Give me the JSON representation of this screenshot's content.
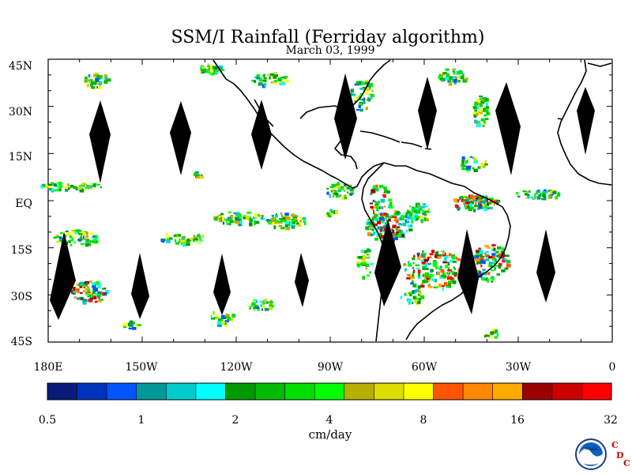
{
  "title": "SSM/I Rainfall (Ferriday algorithm)",
  "subtitle": "March 03, 1999",
  "lat_labels": [
    "45N",
    "30N",
    "15N",
    "EQ",
    "15S",
    "30S",
    "45S"
  ],
  "lon_labels": [
    "180E",
    "150W",
    "120W",
    "90W",
    "60W",
    "30W",
    "0"
  ],
  "colorbar": {
    "unit": "cm/day",
    "tick_labels": [
      "0.5",
      "1",
      "2",
      "4",
      "8",
      "16",
      "32"
    ],
    "colors": [
      "#0a1a7a",
      "#0033bb",
      "#0055ff",
      "#00999a",
      "#00cccc",
      "#00ffff",
      "#009900",
      "#00bb00",
      "#00dd00",
      "#00ff00",
      "#b8b000",
      "#dddd00",
      "#ffff00",
      "#ff5500",
      "#ff8800",
      "#ffaa00",
      "#990000",
      "#cc0000",
      "#ff0000"
    ]
  },
  "logos": {
    "agency": "NOAA",
    "lab": "CDC"
  },
  "map": {
    "lon_range": [
      180,
      360
    ],
    "lat_range": [
      -45,
      45
    ],
    "projection": "cylindrical-equidistant",
    "orbit_gaps": "black diamond-shaped swath gaps (no data)",
    "coastlines": [
      "North America",
      "Central America",
      "Caribbean",
      "South America",
      "West Africa"
    ],
    "rain_areas": [
      {
        "region": "Amazon basin",
        "intensity": "heavy"
      },
      {
        "region": "southeast Brazil / South Atlantic convergence zone",
        "intensity": "heavy"
      },
      {
        "region": "southwest Pacific near 150W-180",
        "intensity": "moderate"
      },
      {
        "region": "ITCZ east Pacific",
        "intensity": "light"
      },
      {
        "region": "equatorial Atlantic ITCZ",
        "intensity": "moderate"
      },
      {
        "region": "North Atlantic storm track",
        "intensity": "moderate"
      }
    ]
  }
}
